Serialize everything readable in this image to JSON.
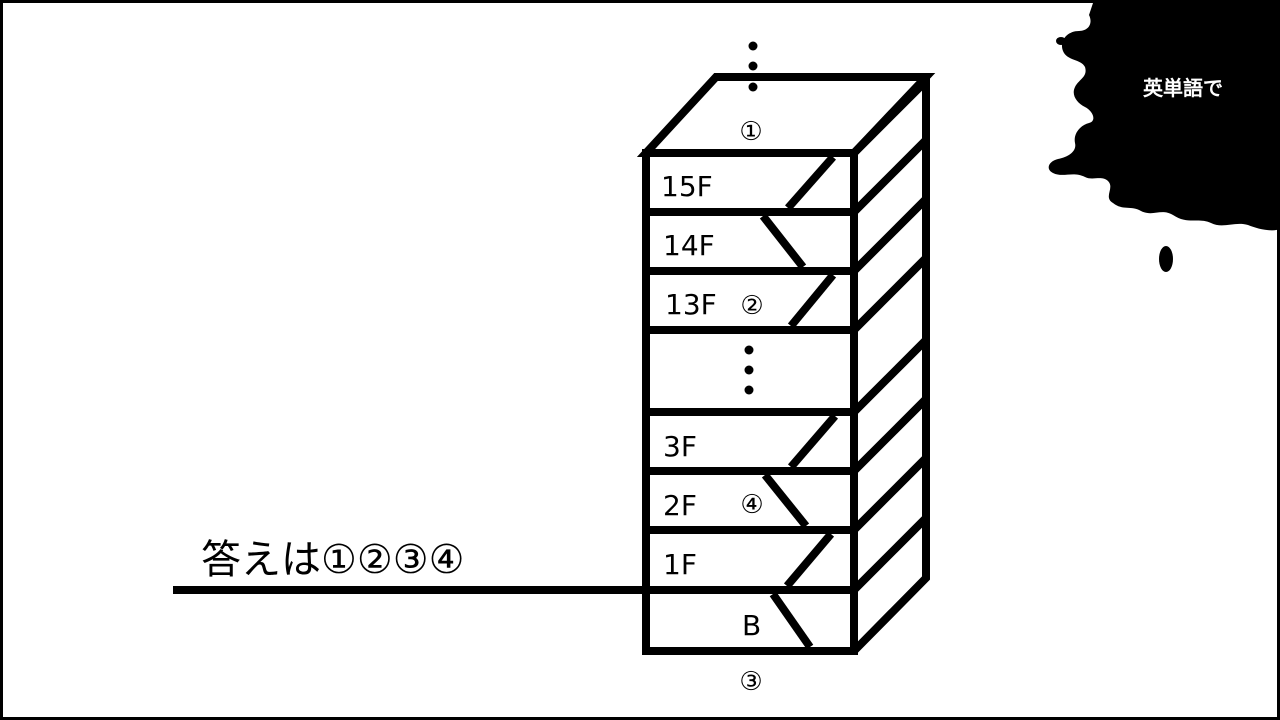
{
  "badge": {
    "text": "英単語で",
    "bg_color": "#000000",
    "text_color": "#ffffff"
  },
  "answer": {
    "text": "答えは①②③④"
  },
  "building": {
    "floors": [
      {
        "label": "15F"
      },
      {
        "label": "14F"
      },
      {
        "label": "13F"
      },
      {
        "label": ""
      },
      {
        "label": "3F"
      },
      {
        "label": "2F"
      },
      {
        "label": "1F"
      },
      {
        "label": "B"
      }
    ],
    "markers": {
      "top": "①",
      "thirteen": "②",
      "bottom": "③",
      "second": "④"
    },
    "ellipsis": "⋮"
  },
  "colors": {
    "ink": "#000000",
    "paper": "#ffffff"
  }
}
